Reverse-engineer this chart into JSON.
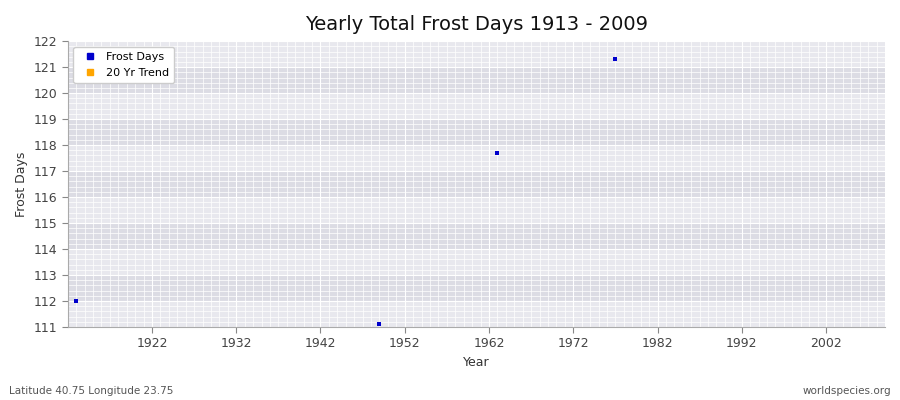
{
  "title": "Yearly Total Frost Days 1913 - 2009",
  "xlabel": "Year",
  "ylabel": "Frost Days",
  "footer_left": "Latitude 40.75 Longitude 23.75",
  "footer_right": "worldspecies.org",
  "xlim": [
    1912,
    2009
  ],
  "ylim": [
    111,
    122
  ],
  "yticks": [
    111,
    112,
    113,
    114,
    115,
    116,
    117,
    118,
    119,
    120,
    121,
    122
  ],
  "xticks": [
    1922,
    1932,
    1942,
    1952,
    1962,
    1972,
    1982,
    1992,
    2002
  ],
  "bg_color": "#ffffff",
  "plot_bg_color_light": "#e8e8ee",
  "plot_bg_color_dark": "#dcdce4",
  "grid_color": "#ffffff",
  "data_points": [
    {
      "year": 1913,
      "value": 112.0
    },
    {
      "year": 1949,
      "value": 111.1
    },
    {
      "year": 1963,
      "value": 117.7
    },
    {
      "year": 1977,
      "value": 121.3
    }
  ],
  "point_color": "#0000cc",
  "point_size": 3,
  "legend_frost_label": "Frost Days",
  "legend_trend_label": "20 Yr Trend",
  "legend_frost_color": "#0000cc",
  "legend_trend_color": "#ffa500",
  "title_fontsize": 14,
  "axis_label_fontsize": 9,
  "tick_label_fontsize": 9
}
